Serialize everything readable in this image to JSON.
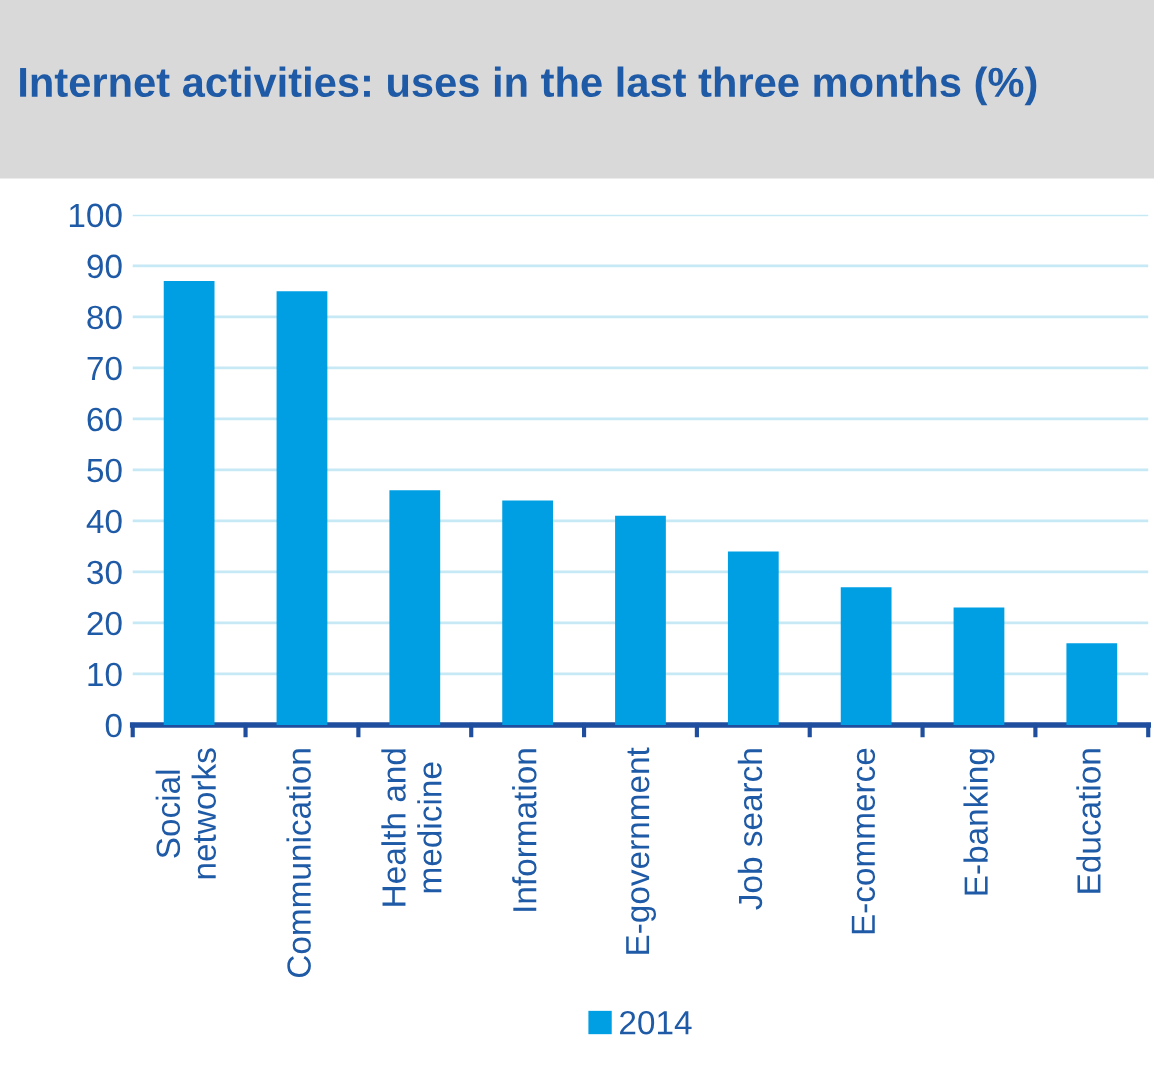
{
  "chart_data": {
    "type": "bar",
    "title": "Internet activities: uses in the last three months (%)",
    "categories": [
      "Social\nnetworks",
      "Communication",
      "Health and\nmedicine",
      "Information",
      "E-government",
      "Job search",
      "E-commerce",
      "E-banking",
      "Education"
    ],
    "series": [
      {
        "name": "2014",
        "color": "#009fe3",
        "values": [
          87,
          85,
          46,
          44,
          41,
          34,
          27,
          23,
          16
        ]
      }
    ],
    "ylim": [
      0,
      100
    ],
    "yticks": [
      0,
      10,
      20,
      30,
      40,
      50,
      60,
      70,
      80,
      90,
      100
    ],
    "grid": "y",
    "legend": "bottom"
  }
}
